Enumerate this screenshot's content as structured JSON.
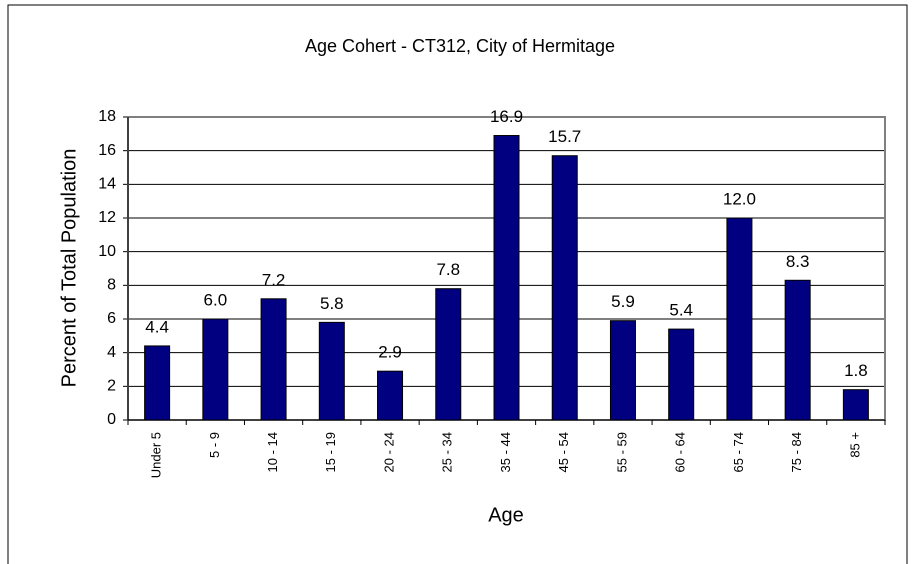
{
  "chart_data": {
    "type": "bar",
    "title": "Age Cohert - CT312, City of Hermitage",
    "x_label": "Age",
    "y_label": "Percent of Total Population",
    "categories": [
      "Under 5",
      "5 - 9",
      "10 - 14",
      "15 - 19",
      "20 - 24",
      "25 - 34",
      "35 - 44",
      "45 - 54",
      "55 - 59",
      "60 - 64",
      "65 - 74",
      "75 - 84",
      "85 +"
    ],
    "values": [
      4.4,
      6.0,
      7.2,
      5.8,
      2.9,
      7.8,
      16.9,
      15.7,
      5.9,
      5.4,
      12.0,
      8.3,
      1.8
    ],
    "value_labels": [
      "4.4",
      "6.0",
      "7.2",
      "5.8",
      "2.9",
      "7.8",
      "16.9",
      "15.7",
      "5.9",
      "5.4",
      "12.0",
      "8.3",
      "1.8"
    ],
    "color": "#000080",
    "ylim": [
      0,
      18
    ],
    "yticks": [
      0,
      2,
      4,
      6,
      8,
      10,
      12,
      14,
      16,
      18
    ],
    "grid": true
  }
}
